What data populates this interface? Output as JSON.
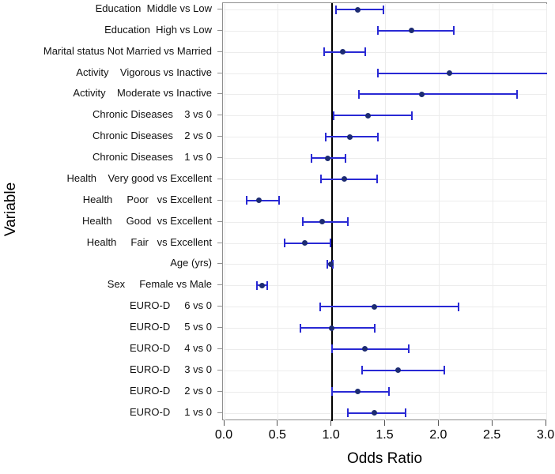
{
  "chart_data": {
    "type": "scatter",
    "variant": "forest-plot-odds-ratio",
    "title": "",
    "xlabel": "Odds Ratio",
    "ylabel": "Variable",
    "xlim": [
      0.0,
      3.0
    ],
    "x_ticks": [
      0.0,
      0.5,
      1.0,
      1.5,
      2.0,
      2.5,
      3.0
    ],
    "x_tick_labels": [
      "0.0",
      "0.5",
      "1.0",
      "1.5",
      "2.0",
      "2.5",
      "3.0"
    ],
    "reference_line_x": 1.0,
    "grid": true,
    "legend": "none",
    "rows": [
      {
        "label": "Education  Middle vs Low",
        "or": 1.24,
        "ci_low": 1.04,
        "ci_high": 1.48
      },
      {
        "label": "Education  High vs Low",
        "or": 1.74,
        "ci_low": 1.43,
        "ci_high": 2.14
      },
      {
        "label": "Marital status Not Married vs Married",
        "or": 1.1,
        "ci_low": 0.93,
        "ci_high": 1.31
      },
      {
        "label": "Activity    Vigorous vs Inactive",
        "or": 2.1,
        "ci_low": 1.43,
        "ci_high": 3.05,
        "ci_high_clipped": true
      },
      {
        "label": "Activity    Moderate vs Inactive",
        "or": 1.84,
        "ci_low": 1.25,
        "ci_high": 2.73
      },
      {
        "label": "Chronic Diseases    3 vs 0",
        "or": 1.34,
        "ci_low": 1.02,
        "ci_high": 1.75
      },
      {
        "label": "Chronic Diseases    2 vs 0",
        "or": 1.17,
        "ci_low": 0.94,
        "ci_high": 1.43
      },
      {
        "label": "Chronic Diseases    1 vs 0",
        "or": 0.96,
        "ci_low": 0.81,
        "ci_high": 1.13
      },
      {
        "label": "Health    Very good vs Excellent",
        "or": 1.12,
        "ci_low": 0.9,
        "ci_high": 1.42
      },
      {
        "label": "Health     Poor   vs Excellent",
        "or": 0.32,
        "ci_low": 0.21,
        "ci_high": 0.51
      },
      {
        "label": "Health     Good  vs Excellent",
        "or": 0.91,
        "ci_low": 0.73,
        "ci_high": 1.15
      },
      {
        "label": "Health     Fair   vs Excellent",
        "or": 0.75,
        "ci_low": 0.56,
        "ci_high": 0.99
      },
      {
        "label": "Age (yrs)",
        "or": 0.99,
        "ci_low": 0.96,
        "ci_high": 1.01
      },
      {
        "label": "Sex     Female vs Male",
        "or": 0.35,
        "ci_low": 0.3,
        "ci_high": 0.4
      },
      {
        "label": "EURO-D     6 vs 0",
        "or": 1.4,
        "ci_low": 0.89,
        "ci_high": 2.18
      },
      {
        "label": "EURO-D     5 vs 0",
        "or": 1.0,
        "ci_low": 0.71,
        "ci_high": 1.4
      },
      {
        "label": "EURO-D     4 vs 0",
        "or": 1.31,
        "ci_low": 1.0,
        "ci_high": 1.72
      },
      {
        "label": "EURO-D     3 vs 0",
        "or": 1.62,
        "ci_low": 1.28,
        "ci_high": 2.05
      },
      {
        "label": "EURO-D     2 vs 0",
        "or": 1.24,
        "ci_low": 1.0,
        "ci_high": 1.53
      },
      {
        "label": "EURO-D     1 vs 0",
        "or": 1.4,
        "ci_low": 1.15,
        "ci_high": 1.69
      }
    ],
    "colors": {
      "ci_line": "#2929d4",
      "marker": "#1c2b72",
      "reference_line": "#000000",
      "grid": "#ececec",
      "frame": "#8f8f8f",
      "text": "#000000"
    }
  }
}
